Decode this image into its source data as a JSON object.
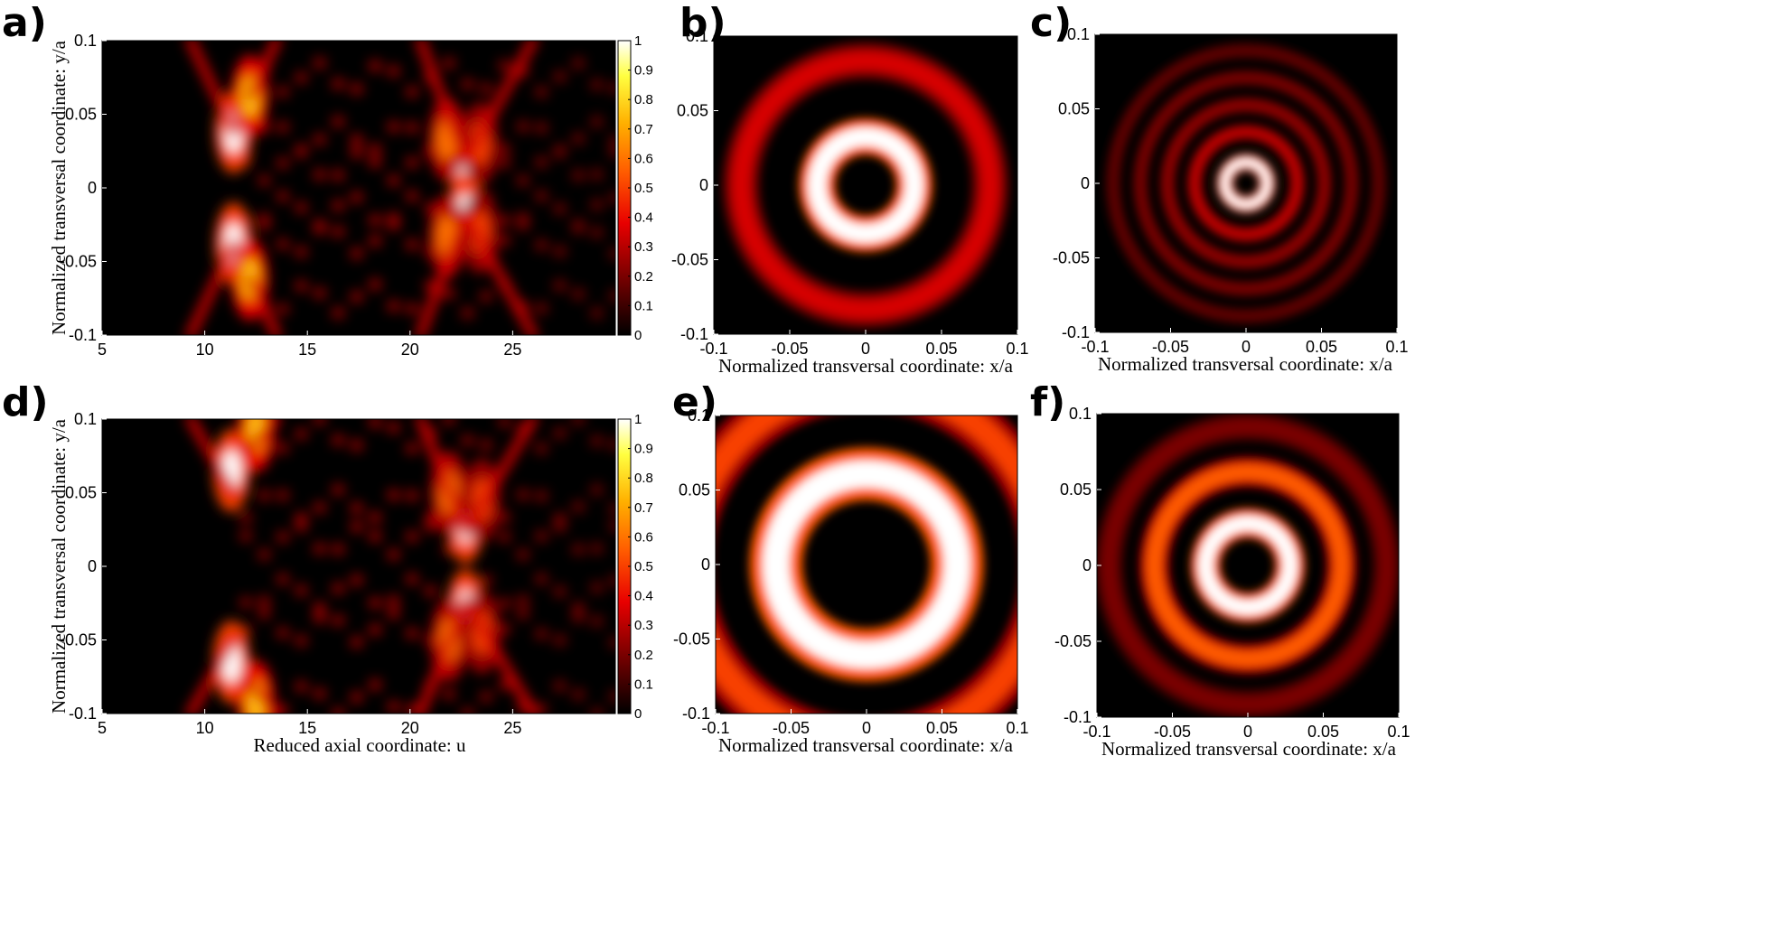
{
  "figure": {
    "panel_letters": [
      "a)",
      "b)",
      "c)",
      "d)",
      "e)",
      "f)"
    ]
  },
  "colormap": {
    "name": "hot",
    "stops": [
      "#000000",
      "#7a0000",
      "#e80000",
      "#ff5a00",
      "#ffb000",
      "#ffff40",
      "#ffffff"
    ]
  },
  "chart_data": [
    {
      "panel": "a)",
      "type": "heatmap",
      "xlabel": "",
      "ylabel": "Normalized transversal coordinate: y/a",
      "xlim": [
        5,
        30
      ],
      "ylim": [
        -0.1,
        0.1
      ],
      "xticks": [
        "5",
        "10",
        "15",
        "20",
        "25"
      ],
      "yticks": [
        "-0.1",
        "-0.05",
        "0",
        "0.05",
        "0.1"
      ],
      "colorbar": {
        "range": [
          0,
          1
        ],
        "ticks": [
          "0",
          "0.1",
          "0.2",
          "0.3",
          "0.4",
          "0.5",
          "0.6",
          "0.7",
          "0.8",
          "0.9",
          "1"
        ]
      },
      "hotspots": [
        {
          "x": 11.4,
          "y": 0.038,
          "v": 1.0
        },
        {
          "x": 11.4,
          "y": -0.038,
          "v": 1.0
        },
        {
          "x": 12.2,
          "y": 0.062,
          "v": 0.75
        },
        {
          "x": 12.2,
          "y": -0.062,
          "v": 0.75
        },
        {
          "x": 22.7,
          "y": 0.018,
          "v": 1.0
        },
        {
          "x": 22.7,
          "y": -0.018,
          "v": 1.0
        },
        {
          "x": 21.8,
          "y": 0.033,
          "v": 0.6
        },
        {
          "x": 21.8,
          "y": -0.033,
          "v": 0.6
        },
        {
          "x": 23.4,
          "y": 0.03,
          "v": 0.5
        },
        {
          "x": 23.4,
          "y": -0.03,
          "v": 0.5
        }
      ]
    },
    {
      "panel": "b)",
      "type": "heatmap",
      "xlabel": "Normalized transversal coordinate: x/a",
      "ylabel": "",
      "xlim": [
        -0.1,
        0.1
      ],
      "ylim": [
        -0.1,
        0.1
      ],
      "xticks": [
        "-0.1",
        "-0.05",
        "0",
        "0.05",
        "0.1"
      ],
      "yticks": [
        "-0.1",
        "-0.05",
        "0",
        "0.05",
        "0.1"
      ],
      "rings": [
        {
          "r": 0.032,
          "w": 0.011,
          "v": 1.0
        },
        {
          "r": 0.082,
          "w": 0.011,
          "v": 0.35
        }
      ]
    },
    {
      "panel": "c)",
      "type": "heatmap",
      "xlabel": "Normalized transversal coordinate: x/a",
      "ylabel": "",
      "xlim": [
        -0.1,
        0.1
      ],
      "ylim": [
        -0.1,
        0.1
      ],
      "xticks": [
        "-0.1",
        "-0.05",
        "0",
        "0.05",
        "0.1"
      ],
      "yticks": [
        "-0.1",
        "-0.05",
        "0",
        "0.05",
        "0.1"
      ],
      "rings": [
        {
          "r": 0.014,
          "w": 0.005,
          "v": 1.0
        },
        {
          "r": 0.034,
          "w": 0.005,
          "v": 0.32
        },
        {
          "r": 0.052,
          "w": 0.005,
          "v": 0.24
        },
        {
          "r": 0.07,
          "w": 0.005,
          "v": 0.2
        },
        {
          "r": 0.088,
          "w": 0.005,
          "v": 0.16
        }
      ]
    },
    {
      "panel": "d)",
      "type": "heatmap",
      "xlabel": "Reduced axial coordinate: u",
      "ylabel": "Normalized transversal coordinate: y/a",
      "xlim": [
        5,
        30
      ],
      "ylim": [
        -0.1,
        0.1
      ],
      "xticks": [
        "5",
        "10",
        "15",
        "20",
        "25"
      ],
      "yticks": [
        "-0.1",
        "-0.05",
        "0",
        "0.05",
        "0.1"
      ],
      "colorbar": {
        "range": [
          0,
          1
        ],
        "ticks": [
          "0",
          "0.1",
          "0.2",
          "0.3",
          "0.4",
          "0.5",
          "0.6",
          "0.7",
          "0.8",
          "0.9",
          "1"
        ]
      },
      "hotspots": [
        {
          "x": 11.3,
          "y": 0.065,
          "v": 1.0
        },
        {
          "x": 11.3,
          "y": -0.065,
          "v": 1.0
        },
        {
          "x": 12.5,
          "y": 0.092,
          "v": 0.75
        },
        {
          "x": 12.5,
          "y": -0.092,
          "v": 0.75
        },
        {
          "x": 22.7,
          "y": 0.03,
          "v": 1.0
        },
        {
          "x": 22.7,
          "y": -0.03,
          "v": 1.0
        },
        {
          "x": 21.9,
          "y": 0.05,
          "v": 0.6
        },
        {
          "x": 21.9,
          "y": -0.05,
          "v": 0.6
        },
        {
          "x": 23.5,
          "y": 0.045,
          "v": 0.5
        },
        {
          "x": 23.5,
          "y": -0.045,
          "v": 0.5
        }
      ]
    },
    {
      "panel": "e)",
      "type": "heatmap",
      "xlabel": "Normalized transversal coordinate: x/a",
      "ylabel": "",
      "xlim": [
        -0.1,
        0.1
      ],
      "ylim": [
        -0.1,
        0.1
      ],
      "xticks": [
        "-0.1",
        "-0.05",
        "0",
        "0.05",
        "0.1"
      ],
      "yticks": [
        "-0.1",
        "-0.05",
        "0",
        "0.05",
        "0.1"
      ],
      "rings": [
        {
          "r": 0.06,
          "w": 0.016,
          "v": 1.0
        },
        {
          "r": 0.118,
          "w": 0.014,
          "v": 0.5
        }
      ]
    },
    {
      "panel": "f)",
      "type": "heatmap",
      "xlabel": "Normalized transversal coordinate: x/a",
      "ylabel": "",
      "xlim": [
        -0.1,
        0.1
      ],
      "ylim": [
        -0.1,
        0.1
      ],
      "xticks": [
        "-0.1",
        "-0.05",
        "0",
        "0.05",
        "0.1"
      ],
      "yticks": [
        "-0.1",
        "-0.05",
        "0",
        "0.05",
        "0.1"
      ],
      "rings": [
        {
          "r": 0.028,
          "w": 0.009,
          "v": 1.0
        },
        {
          "r": 0.062,
          "w": 0.009,
          "v": 0.55
        },
        {
          "r": 0.092,
          "w": 0.009,
          "v": 0.2
        }
      ]
    }
  ]
}
